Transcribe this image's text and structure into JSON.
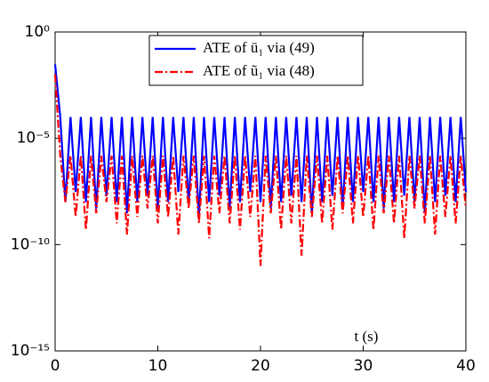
{
  "chart_data": {
    "type": "line",
    "x_label": "t (s)",
    "x": [
      0,
      0.5,
      1,
      1.5,
      2,
      2.5,
      3,
      3.5,
      4,
      4.5,
      5,
      5.5,
      6,
      6.5,
      7,
      7.5,
      8,
      8.5,
      9,
      9.5,
      10,
      10.5,
      11,
      11.5,
      12,
      12.5,
      13,
      13.5,
      14,
      14.5,
      15,
      15.5,
      16,
      16.5,
      17,
      17.5,
      18,
      18.5,
      19,
      19.5,
      20,
      20.5,
      21,
      21.5,
      22,
      22.5,
      23,
      23.5,
      24,
      24.5,
      25,
      25.5,
      26,
      26.5,
      27,
      27.5,
      28,
      28.5,
      29,
      29.5,
      30,
      30.5,
      31,
      31.5,
      32,
      32.5,
      33,
      33.5,
      34,
      34.5,
      35,
      35.5,
      36,
      36.5,
      37,
      37.5,
      38,
      38.5,
      39,
      39.5,
      40
    ],
    "series": [
      {
        "name": "ATE of ū₁ via (49)",
        "color": "#0000ff",
        "dash": "solid",
        "values": [
          0.03,
          0.0001,
          1e-08,
          0.0001,
          3e-08,
          0.0001,
          1e-08,
          0.0001,
          5e-09,
          0.0001,
          2e-08,
          0.0001,
          1e-08,
          0.0001,
          3e-09,
          0.0001,
          1e-08,
          0.0001,
          2e-08,
          0.0001,
          5e-09,
          0.0001,
          1e-08,
          0.0001,
          3e-08,
          0.0001,
          1e-08,
          0.0001,
          2e-09,
          0.0001,
          1e-08,
          0.0001,
          2e-08,
          0.0001,
          5e-09,
          0.0001,
          1e-08,
          0.0001,
          3e-08,
          0.0001,
          1e-08,
          0.0001,
          5e-09,
          0.0001,
          1e-08,
          0.0001,
          2e-08,
          0.0001,
          1e-08,
          0.0001,
          3e-09,
          0.0001,
          1e-08,
          0.0001,
          2e-08,
          0.0001,
          5e-09,
          0.0001,
          1e-08,
          0.0001,
          3e-08,
          0.0001,
          1e-08,
          0.0001,
          5e-09,
          0.0001,
          1e-08,
          0.0001,
          2e-08,
          0.0001,
          1e-08,
          0.0001,
          3e-09,
          0.0001,
          1e-08,
          0.0001,
          2e-08,
          0.0001,
          1e-08,
          0.0001,
          3e-08
        ]
      },
      {
        "name": "ATE of ũ₁ via (48)",
        "color": "#ff0000",
        "dash": "dashdot",
        "values": [
          0.01,
          1.5e-06,
          1e-08,
          1.5e-06,
          2e-09,
          1.5e-06,
          5e-10,
          1.5e-06,
          3e-09,
          1.5e-06,
          1e-08,
          1.5e-06,
          1e-09,
          1.5e-06,
          3e-10,
          1.5e-06,
          2e-09,
          1.5e-06,
          5e-09,
          1.5e-06,
          1e-09,
          1.5e-06,
          2e-09,
          1.5e-06,
          3e-10,
          1.5e-06,
          5e-09,
          1.5e-06,
          1e-09,
          1.5e-06,
          2e-10,
          1.5e-06,
          3e-09,
          1.5e-06,
          1e-09,
          1.5e-06,
          5e-10,
          1.5e-06,
          2e-09,
          1.5e-06,
          1e-11,
          1.5e-06,
          3e-09,
          1.5e-06,
          5e-10,
          1.5e-06,
          1e-09,
          1.5e-06,
          3e-11,
          1.5e-06,
          2e-09,
          1.5e-06,
          1e-09,
          1.5e-06,
          5e-10,
          1.5e-06,
          3e-09,
          1.5e-06,
          1e-09,
          1.5e-06,
          2e-09,
          1.5e-06,
          5e-10,
          1.5e-06,
          3e-09,
          1.5e-06,
          1e-09,
          1.5e-06,
          2e-10,
          1.5e-06,
          5e-09,
          1.5e-06,
          1e-09,
          1.5e-06,
          3e-10,
          1.5e-06,
          2e-09,
          1.5e-06,
          1e-09,
          1.5e-06,
          5e-09
        ]
      }
    ],
    "xlim": [
      0,
      40
    ],
    "xticks": [
      0,
      10,
      20,
      30,
      40
    ],
    "ylim": [
      1e-15,
      1
    ],
    "y_scale": "log",
    "yticks": [
      {
        "value": 1e-15,
        "label": "10⁻¹⁵"
      },
      {
        "value": 1e-10,
        "label": "10⁻¹⁰"
      },
      {
        "value": 1e-05,
        "label": "10⁻⁵"
      },
      {
        "value": 1,
        "label": "10⁰"
      }
    ],
    "grid": false,
    "legend": "top"
  }
}
